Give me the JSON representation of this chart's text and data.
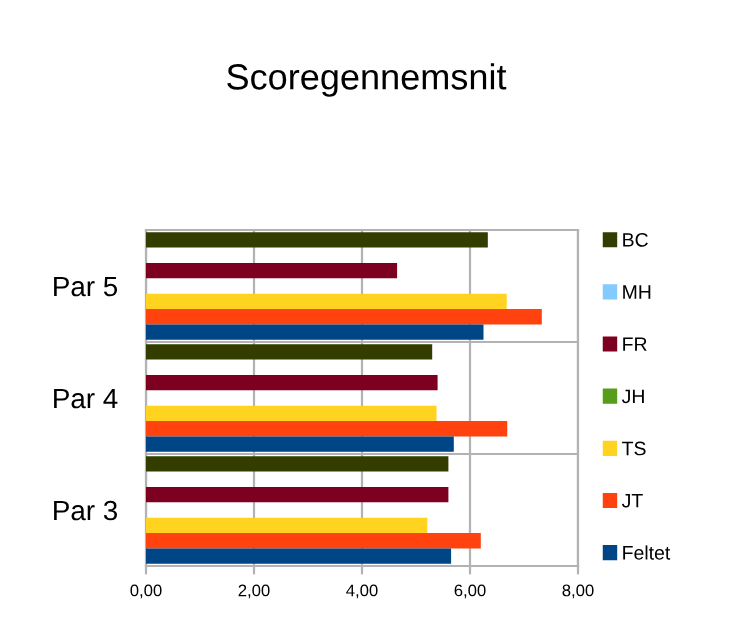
{
  "chart_data": {
    "type": "bar",
    "orientation": "horizontal",
    "title": "Scoregennemsnit",
    "categories": [
      "Par 5",
      "Par 4",
      "Par 3"
    ],
    "series": [
      {
        "name": "BC",
        "color": "#333d00",
        "values": [
          6.33,
          5.3,
          5.6
        ]
      },
      {
        "name": "MH",
        "color": "#83caff",
        "values": [
          null,
          null,
          null
        ]
      },
      {
        "name": "FR",
        "color": "#7e0021",
        "values": [
          4.65,
          5.4,
          5.6
        ]
      },
      {
        "name": "JH",
        "color": "#579d1c",
        "values": [
          null,
          null,
          null
        ]
      },
      {
        "name": "TS",
        "color": "#ffd320",
        "values": [
          6.68,
          5.38,
          5.21
        ]
      },
      {
        "name": "JT",
        "color": "#ff420e",
        "values": [
          7.33,
          6.69,
          6.2
        ]
      },
      {
        "name": "Feltet",
        "color": "#004586",
        "values": [
          6.25,
          5.7,
          5.65
        ]
      }
    ],
    "xlim": [
      0,
      8
    ],
    "xticks": [
      {
        "value": 0,
        "label": "0,00"
      },
      {
        "value": 2,
        "label": "2,00"
      },
      {
        "value": 4,
        "label": "4,00"
      },
      {
        "value": 6,
        "label": "6,00"
      },
      {
        "value": 8,
        "label": "8,00"
      }
    ],
    "grid": true,
    "legend": "right"
  }
}
